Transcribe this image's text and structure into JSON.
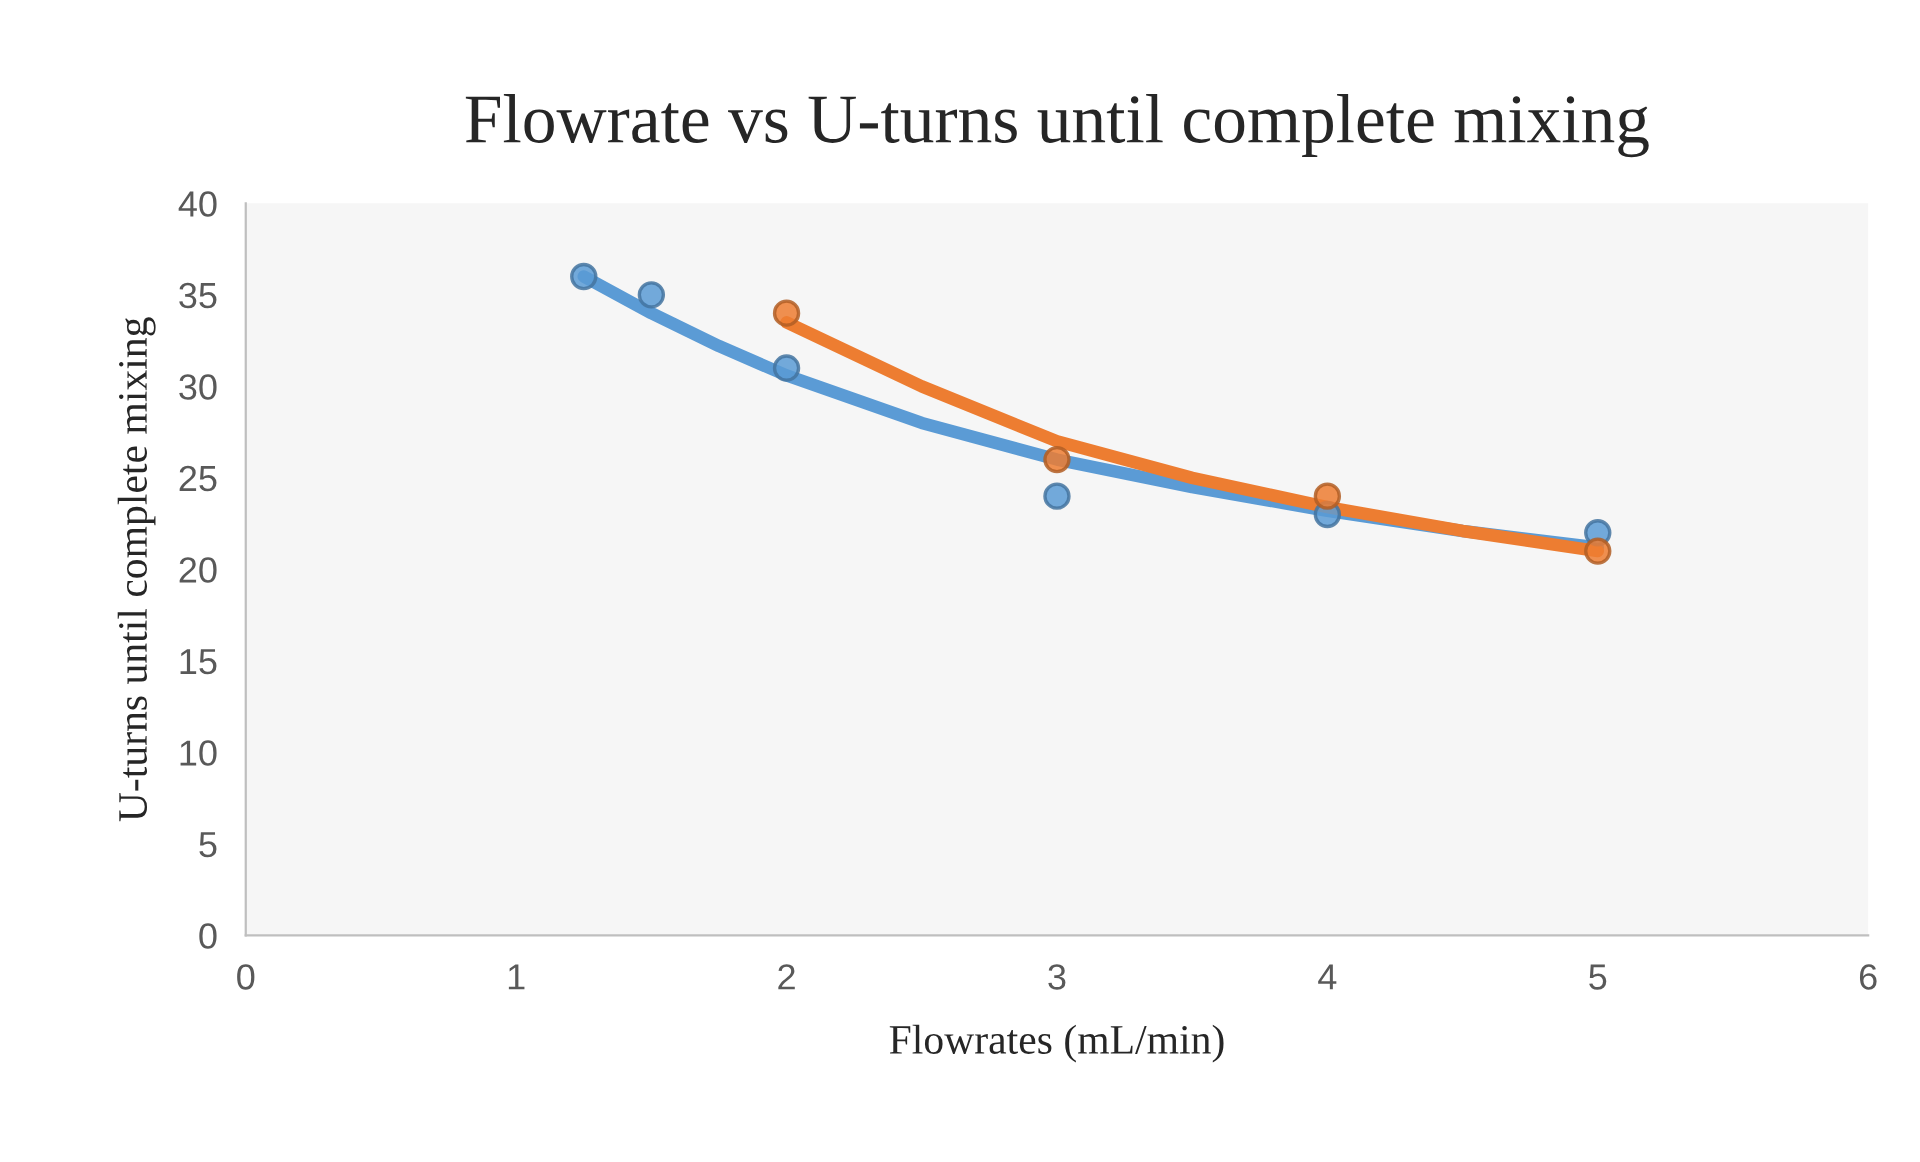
{
  "chart_data": {
    "type": "scatter",
    "title": "Flowrate vs U-turns until complete mixing",
    "xlabel": "Flowrates (mL/min)",
    "ylabel": "U-turns until complete mixing",
    "xlim": [
      0,
      6
    ],
    "xticks": [
      0,
      1,
      2,
      3,
      4,
      5,
      6
    ],
    "ylim": [
      0,
      40
    ],
    "yticks": [
      0,
      5,
      10,
      15,
      20,
      25,
      30,
      35,
      40
    ],
    "grid": false,
    "legend": false,
    "series": [
      {
        "marker": "circle",
        "color": "#5b9bd5",
        "x": [
          1.25,
          1.5,
          2,
          3,
          4,
          5
        ],
        "values": [
          36,
          35,
          31,
          24,
          23,
          22
        ]
      },
      {
        "marker": "circle",
        "color": "#ed7d31",
        "x": [
          2,
          3,
          4,
          5
        ],
        "values": [
          34,
          26,
          24,
          21
        ]
      },
      {
        "type": "line",
        "marker": "none",
        "color": "#5b9bd5",
        "x": [
          1.25,
          1.5,
          1.75,
          2,
          2.5,
          3,
          3.5,
          4,
          4.5,
          5
        ],
        "values": [
          36,
          34,
          32.2,
          30.6,
          28,
          26,
          24.5,
          23.2,
          22.1,
          21.2
        ]
      },
      {
        "type": "line",
        "marker": "none",
        "color": "#ed7d31",
        "x": [
          2,
          2.5,
          3,
          3.5,
          4,
          4.5,
          5
        ],
        "values": [
          33.5,
          30,
          27,
          25,
          23.4,
          22.1,
          21
        ]
      }
    ]
  }
}
